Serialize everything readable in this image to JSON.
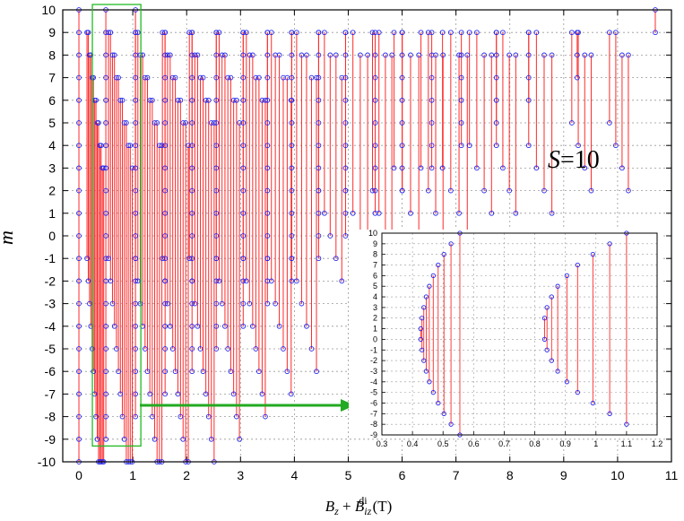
{
  "chart_data": {
    "type": "scatter",
    "grid": true,
    "main": {
      "xlabel": "B_z + B_iz^di (T)",
      "xlabel_parts": {
        "a": "B",
        "a_sub": "z",
        "plus": " + ",
        "b": "B",
        "b_sub": "iz",
        "b_sup": "di",
        "unit": "(T)"
      },
      "ylabel": "m",
      "xlim": [
        -0.3,
        11
      ],
      "ylim": [
        -10,
        10
      ],
      "xticks": [
        "0",
        "1",
        "2",
        "3",
        "4",
        "5",
        "6",
        "7",
        "8",
        "9",
        "10",
        "11"
      ],
      "yticks": [
        "-10",
        "-9",
        "-8",
        "-7",
        "-6",
        "-5",
        "-4",
        "-3",
        "-2",
        "-1",
        "0",
        "1",
        "2",
        "3",
        "4",
        "5",
        "6",
        "7",
        "8",
        "9",
        "10"
      ],
      "annotation": {
        "text": "S=10",
        "S": "S",
        "eq": "=10"
      },
      "highlight_box": {
        "x": [
          0.25,
          1.15
        ],
        "y": [
          -9.3,
          10
        ]
      },
      "transitions": [
        {
          "x": 0.0,
          "m": [
            10,
            9,
            8,
            7,
            6,
            5,
            4,
            3,
            2,
            1,
            0,
            -1,
            -2,
            -3,
            -4,
            -5,
            -6,
            -7,
            -8,
            -9,
            -10
          ]
        },
        {
          "x": 0.5,
          "m": [
            10,
            9,
            8,
            7,
            6,
            5,
            4,
            3,
            2,
            1,
            0,
            -1,
            -2,
            -3,
            -4,
            -5,
            -6,
            -7,
            -8,
            -9
          ]
        },
        {
          "x": 1.05,
          "m": [
            10,
            9,
            8,
            7,
            6,
            5,
            4,
            3,
            2,
            1,
            0,
            -1,
            -2,
            -3,
            -4,
            -5,
            -6,
            -7,
            -8
          ]
        },
        {
          "x": 1.6,
          "m": [
            9,
            8,
            7,
            6,
            5,
            4,
            3,
            2,
            1,
            0,
            -1,
            -2,
            -3,
            -4,
            -5,
            -6,
            -7
          ]
        },
        {
          "x": 2.1,
          "m": [
            9,
            8,
            7,
            6,
            5,
            4,
            3,
            2,
            1,
            0,
            -1,
            -2,
            -3,
            -4,
            -5,
            -6
          ]
        },
        {
          "x": 2.55,
          "m": [
            9,
            8,
            7,
            6,
            5,
            4,
            3,
            2,
            1,
            0,
            -1,
            -2,
            -3,
            -4,
            -5
          ]
        },
        {
          "x": 3.05,
          "m": [
            9,
            8,
            7,
            6,
            5,
            4,
            3,
            2,
            1,
            0,
            -1,
            -2,
            -3,
            -4
          ]
        },
        {
          "x": 3.5,
          "m": [
            9,
            8,
            7,
            6,
            5,
            4,
            3,
            2,
            1,
            0,
            -1,
            -2,
            -3
          ]
        },
        {
          "x": 3.95,
          "m": [
            9,
            8,
            7,
            6,
            5,
            4,
            3,
            2,
            1,
            0,
            -1,
            -2
          ]
        },
        {
          "x": 4.45,
          "m": [
            9,
            8,
            7,
            6,
            5,
            4,
            3,
            2,
            1,
            0,
            -1
          ]
        },
        {
          "x": 4.95,
          "m": [
            9,
            8,
            7,
            6,
            5,
            4,
            3,
            2,
            1,
            0
          ]
        },
        {
          "x": 5.5,
          "m": [
            9,
            8,
            7,
            6,
            5,
            4,
            3,
            2,
            1
          ]
        },
        {
          "x": 6.0,
          "m": [
            9,
            8,
            7,
            6,
            5,
            4,
            3,
            2
          ]
        },
        {
          "x": 6.55,
          "m": [
            9,
            8,
            7,
            6,
            5,
            4,
            3
          ]
        },
        {
          "x": 7.1,
          "m": [
            9,
            8,
            7,
            6,
            5,
            4
          ]
        },
        {
          "x": 7.75,
          "m": [
            9,
            8,
            7,
            6,
            5
          ]
        },
        {
          "x": 8.35,
          "m": [
            9,
            8,
            7,
            6
          ]
        },
        {
          "x": 9.25,
          "m": [
            9,
            8,
            7
          ]
        },
        {
          "x": 10.7,
          "m": [
            10,
            9
          ]
        }
      ],
      "ladders": [
        {
          "x0": 0.15,
          "x1": 0.46
        },
        {
          "x0": 0.55,
          "x1": 0.99
        },
        {
          "x0": 1.05,
          "x1": 1.54
        },
        {
          "x0": 1.55,
          "x1": 2.03
        },
        {
          "x0": 2.05,
          "x1": 2.51
        },
        {
          "x0": 2.55,
          "x1": 2.98
        },
        {
          "x0": 3.05,
          "x1": 3.46
        },
        {
          "x0": 3.5,
          "x1": 3.94
        },
        {
          "x0": 3.95,
          "x1": 4.41
        },
        {
          "x0": 4.45,
          "x1": 4.88
        },
        {
          "x0": 4.95,
          "x1": 5.36
        },
        {
          "x0": 5.45,
          "x1": 5.81
        },
        {
          "x0": 5.85,
          "x1": 6.31
        },
        {
          "x0": 6.35,
          "x1": 6.76
        },
        {
          "x0": 6.75,
          "x1": 7.21
        },
        {
          "x0": 7.25,
          "x1": 7.66
        },
        {
          "x0": 7.75,
          "x1": 8.11
        },
        {
          "x0": 8.35,
          "x1": 8.78
        },
        {
          "x0": 9.15,
          "x1": 9.51
        },
        {
          "x0": 9.85,
          "x1": 10.2
        }
      ]
    },
    "inset": {
      "xlim": [
        0.3,
        1.2
      ],
      "ylim": [
        -9,
        10
      ],
      "xticks": [
        "0.3",
        "0.4",
        "0.5",
        "0.6",
        "0.7",
        "0.8",
        "0.9",
        "1",
        "1.1",
        "1.2"
      ],
      "yticks": [
        "-9",
        "-8",
        "-7",
        "-6",
        "-5",
        "-4",
        "-3",
        "-2",
        "-1",
        "0",
        "1",
        "2",
        "3",
        "4",
        "5",
        "6",
        "7",
        "8",
        "9",
        "10"
      ],
      "transitions": [
        {
          "x": 0.555,
          "m_top": 10,
          "m_bottom": -9
        },
        {
          "x": 0.526,
          "m_top": 9,
          "m_bottom": -8
        },
        {
          "x": 0.503,
          "m_top": 8,
          "m_bottom": -7
        },
        {
          "x": 0.484,
          "m_top": 7,
          "m_bottom": -6
        },
        {
          "x": 0.468,
          "m_top": 6,
          "m_bottom": -5
        },
        {
          "x": 0.455,
          "m_top": 5,
          "m_bottom": -4
        },
        {
          "x": 0.445,
          "m_top": 4,
          "m_bottom": -3
        },
        {
          "x": 0.437,
          "m_top": 3,
          "m_bottom": -2
        },
        {
          "x": 0.431,
          "m_top": 2,
          "m_bottom": -1
        },
        {
          "x": 0.427,
          "m_top": 1,
          "m_bottom": 0
        },
        {
          "x": 1.1,
          "m_top": 10,
          "m_bottom": -8
        },
        {
          "x": 1.045,
          "m_top": 9,
          "m_bottom": -7
        },
        {
          "x": 0.99,
          "m_top": 8,
          "m_bottom": -6
        },
        {
          "x": 0.94,
          "m_top": 7,
          "m_bottom": -5
        },
        {
          "x": 0.905,
          "m_top": 6,
          "m_bottom": -4
        },
        {
          "x": 0.875,
          "m_top": 5,
          "m_bottom": -3
        },
        {
          "x": 0.855,
          "m_top": 4,
          "m_bottom": -2
        },
        {
          "x": 0.84,
          "m_top": 3,
          "m_bottom": -1
        },
        {
          "x": 0.832,
          "m_top": 2,
          "m_bottom": 0
        }
      ]
    },
    "colors": {
      "line": "#ff2a2a",
      "point": "#2222ee",
      "grid": "#999999",
      "box": "#22bb22",
      "arrow": "#22aa22"
    }
  }
}
